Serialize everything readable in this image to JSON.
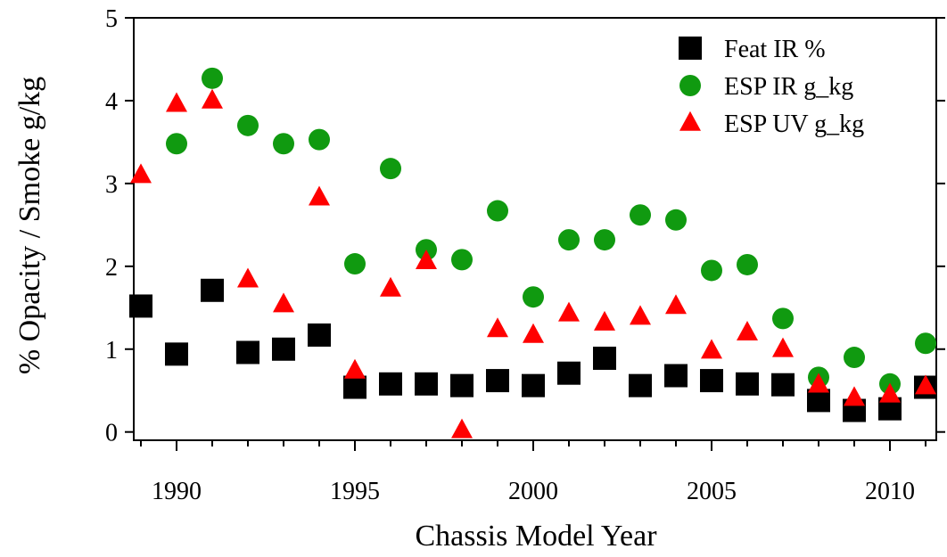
{
  "chart_data": {
    "type": "scatter",
    "title": "",
    "xlabel": "Chassis Model Year",
    "ylabel": "% Opacity / Smoke g/kg",
    "xlim": [
      1988.8,
      2011.3
    ],
    "ylim": [
      -0.1,
      5.0
    ],
    "xticks": [
      1990,
      1995,
      2000,
      2005,
      2010
    ],
    "yticks": [
      0,
      1,
      2,
      3,
      4,
      5
    ],
    "grid": false,
    "legend_position": "top-right",
    "series": [
      {
        "name": "Feat IR %",
        "marker": "square",
        "color": "#000000",
        "points": [
          [
            1989,
            1.52
          ],
          [
            1990,
            0.94
          ],
          [
            1991,
            1.71
          ],
          [
            1992,
            0.96
          ],
          [
            1993,
            1.0
          ],
          [
            1994,
            1.17
          ],
          [
            1995,
            0.54
          ],
          [
            1996,
            0.58
          ],
          [
            1997,
            0.58
          ],
          [
            1998,
            0.56
          ],
          [
            1999,
            0.62
          ],
          [
            2000,
            0.56
          ],
          [
            2001,
            0.71
          ],
          [
            2002,
            0.89
          ],
          [
            2003,
            0.56
          ],
          [
            2004,
            0.68
          ],
          [
            2005,
            0.62
          ],
          [
            2006,
            0.58
          ],
          [
            2007,
            0.57
          ],
          [
            2008,
            0.38
          ],
          [
            2009,
            0.26
          ],
          [
            2010,
            0.28
          ],
          [
            2011,
            0.54
          ]
        ]
      },
      {
        "name": "ESP IR g_kg",
        "marker": "circle",
        "color": "#109a10",
        "points": [
          [
            1990,
            3.48
          ],
          [
            1991,
            4.27
          ],
          [
            1992,
            3.7
          ],
          [
            1993,
            3.48
          ],
          [
            1994,
            3.53
          ],
          [
            1995,
            2.03
          ],
          [
            1996,
            3.18
          ],
          [
            1997,
            2.2
          ],
          [
            1998,
            2.08
          ],
          [
            1999,
            2.67
          ],
          [
            2000,
            1.63
          ],
          [
            2001,
            2.32
          ],
          [
            2002,
            2.32
          ],
          [
            2003,
            2.62
          ],
          [
            2004,
            2.56
          ],
          [
            2005,
            1.95
          ],
          [
            2006,
            2.02
          ],
          [
            2007,
            1.37
          ],
          [
            2008,
            0.66
          ],
          [
            2009,
            0.9
          ],
          [
            2010,
            0.58
          ],
          [
            2011,
            1.07
          ]
        ]
      },
      {
        "name": "ESP UV g_kg",
        "marker": "triangle",
        "color": "#ff0000",
        "points": [
          [
            1989,
            3.1
          ],
          [
            1990,
            3.96
          ],
          [
            1991,
            4.0
          ],
          [
            1992,
            1.84
          ],
          [
            1993,
            1.54
          ],
          [
            1994,
            2.83
          ],
          [
            1995,
            0.74
          ],
          [
            1996,
            1.73
          ],
          [
            1997,
            2.06
          ],
          [
            1998,
            0.02
          ],
          [
            1999,
            1.24
          ],
          [
            2000,
            1.17
          ],
          [
            2001,
            1.43
          ],
          [
            2002,
            1.32
          ],
          [
            2003,
            1.39
          ],
          [
            2004,
            1.52
          ],
          [
            2005,
            0.98
          ],
          [
            2006,
            1.2
          ],
          [
            2007,
            1.0
          ],
          [
            2008,
            0.57
          ],
          [
            2009,
            0.41
          ],
          [
            2010,
            0.45
          ],
          [
            2011,
            0.55
          ]
        ]
      }
    ]
  }
}
